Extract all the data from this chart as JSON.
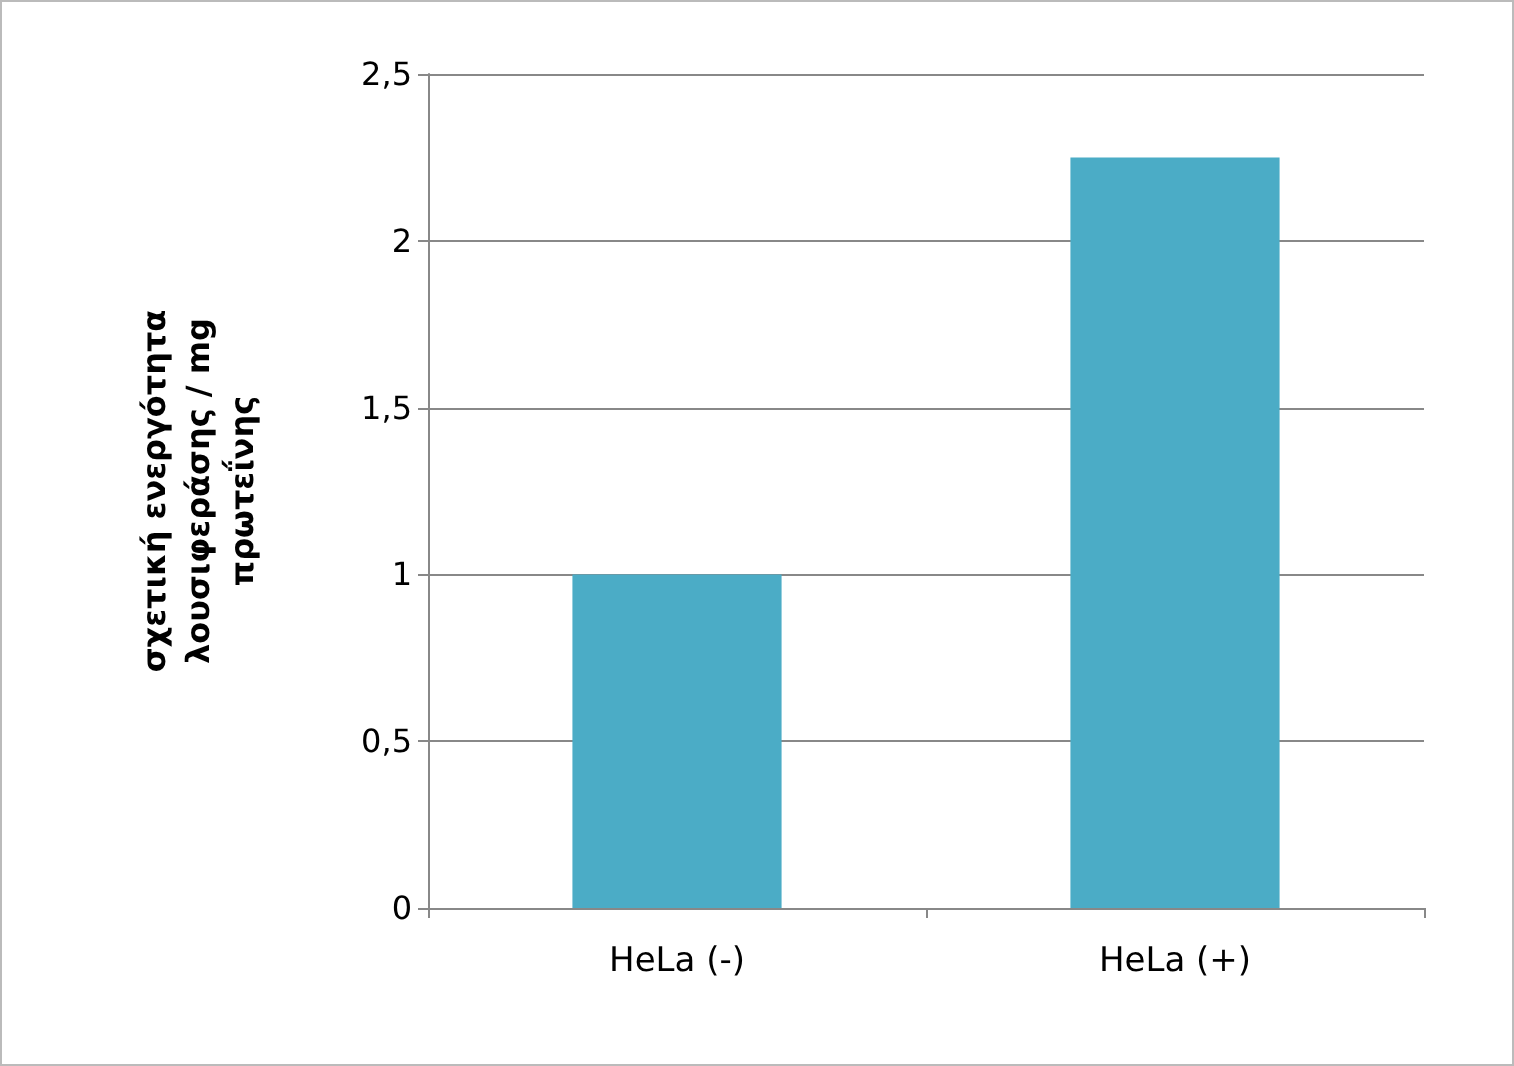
{
  "chart_data": {
    "type": "bar",
    "ylabel": "σχετική ενεργότητα λουσιφεράσης / mg πρωτεΐνης",
    "categories": [
      "HeLa (-)",
      "HeLa (+)"
    ],
    "values": [
      1,
      2.25
    ],
    "color": "#4bacc6",
    "ylim": [
      0,
      2.5
    ],
    "yticks": [
      {
        "value": 0,
        "label": "0"
      },
      {
        "value": 0.5,
        "label": "0,5"
      },
      {
        "value": 1,
        "label": "1"
      },
      {
        "value": 1.5,
        "label": "1,5"
      },
      {
        "value": 2,
        "label": "2"
      },
      {
        "value": 2.5,
        "label": "2,5"
      }
    ],
    "grid": "y"
  }
}
